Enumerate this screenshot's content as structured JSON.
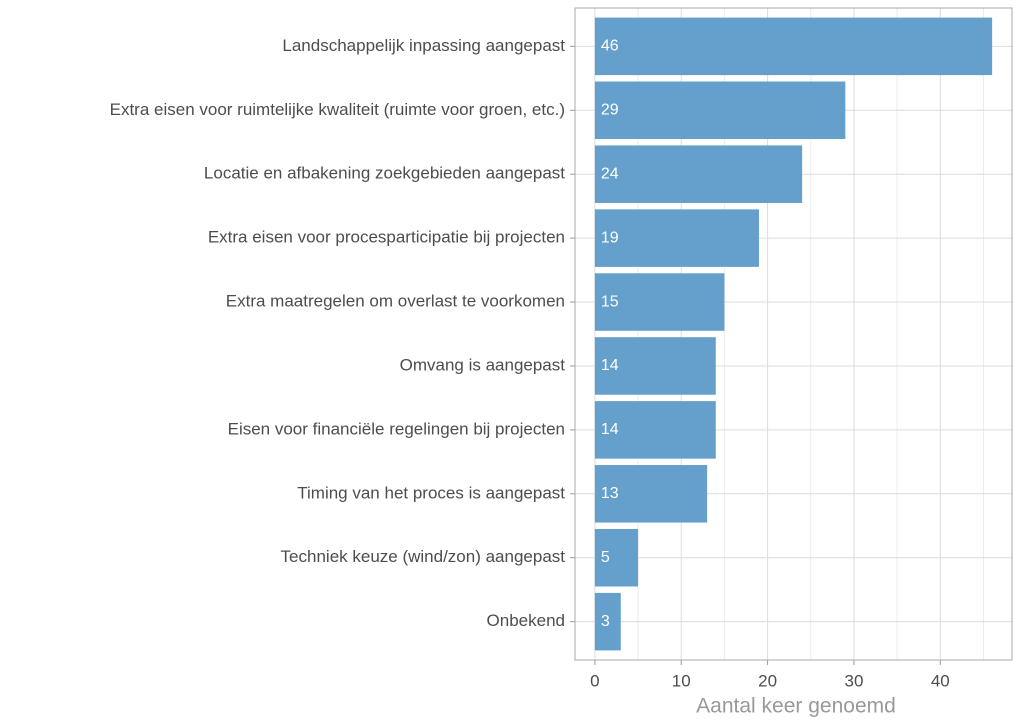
{
  "chart_data": {
    "type": "bar",
    "orientation": "horizontal",
    "categories": [
      "Landschappelijk inpassing aangepast",
      "Extra eisen voor ruimtelijke kwaliteit (ruimte voor groen, etc.)",
      "Locatie en afbakening zoekgebieden aangepast",
      "Extra eisen voor procesparticipatie bij projecten",
      "Extra maatregelen om overlast te voorkomen",
      "Omvang is aangepast",
      "Eisen voor financiële regelingen bij projecten",
      "Timing van het proces is aangepast",
      "Techniek keuze (wind/zon) aangepast",
      "Onbekend"
    ],
    "values": [
      46,
      29,
      24,
      19,
      15,
      14,
      14,
      13,
      5,
      3
    ],
    "color": "#659fcb",
    "x_label": "Aantal keer genoemd",
    "xlim": [
      -2.3,
      48.3
    ],
    "xticks": [
      0,
      10,
      20,
      30,
      40
    ],
    "minor_xticks": [
      5,
      15,
      25,
      35,
      45
    ],
    "grid": true
  }
}
